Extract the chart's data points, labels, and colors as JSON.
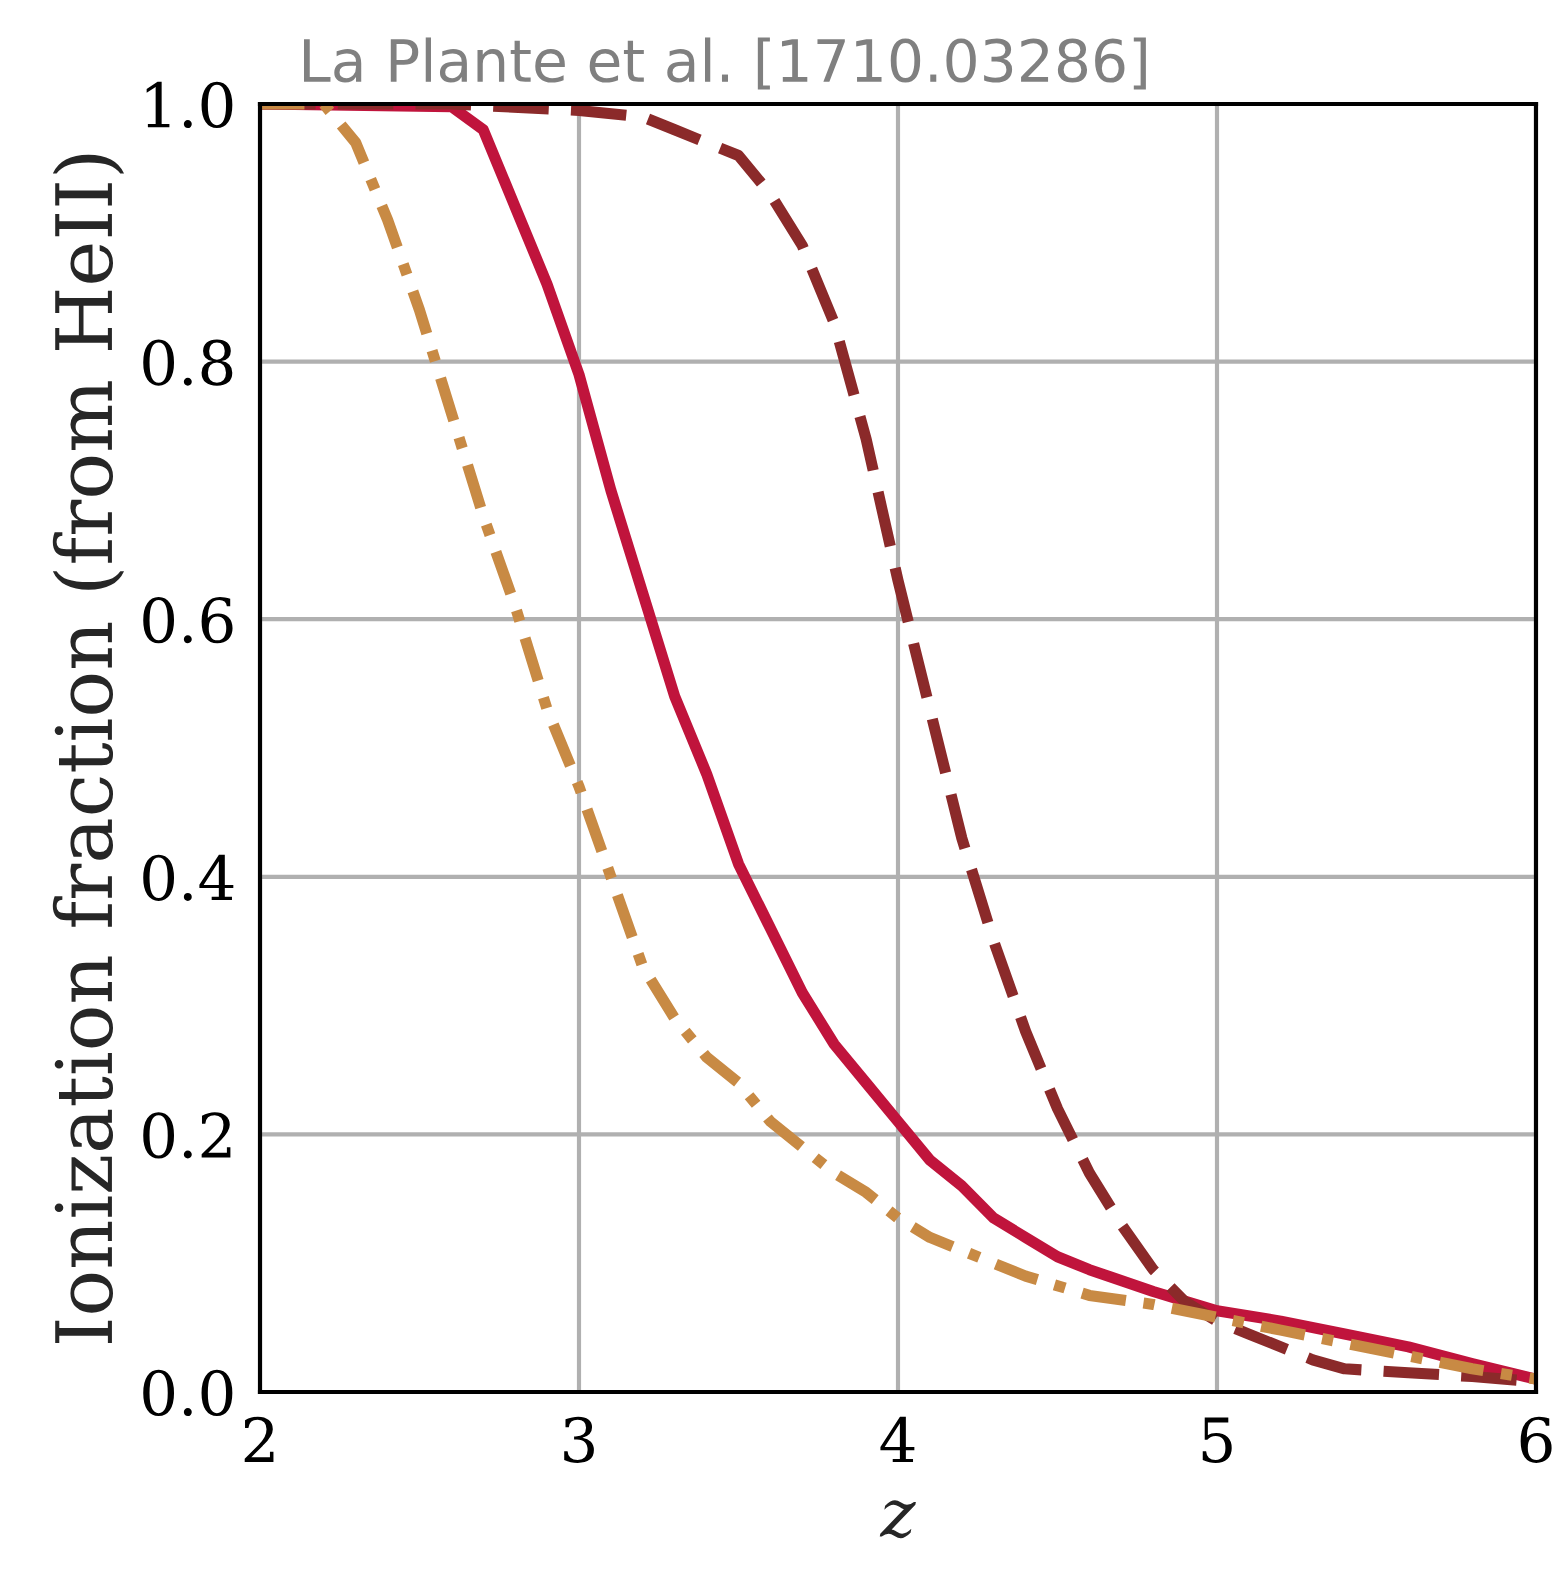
{
  "chart_data": {
    "type": "line",
    "title": "La Plante et al. [1710.03286]",
    "xlabel": "z",
    "ylabel": "Ionization fraction (from HeII)",
    "xlim": [
      2,
      6
    ],
    "ylim": [
      0,
      1
    ],
    "xticks": [
      2,
      3,
      4,
      5,
      6
    ],
    "yticks": [
      {
        "value": 0,
        "label": "0.0"
      },
      {
        "value": 0.2,
        "label": "0.2"
      },
      {
        "value": 0.4,
        "label": "0.4"
      },
      {
        "value": 0.6,
        "label": "0.6"
      },
      {
        "value": 0.8,
        "label": "0.8"
      },
      {
        "value": 1,
        "label": "1.0"
      }
    ],
    "grid": true,
    "series": [
      {
        "color": "#c0143c",
        "line_style": "solid",
        "x": [
          2.0,
          2.6,
          2.7,
          2.8,
          2.9,
          3.0,
          3.1,
          3.2,
          3.3,
          3.4,
          3.5,
          3.6,
          3.7,
          3.8,
          3.9,
          4.0,
          4.1,
          4.2,
          4.3,
          4.4,
          4.5,
          4.6,
          4.8,
          5.0,
          5.2,
          5.4,
          5.6,
          5.8,
          6.0
        ],
        "values": [
          1.0,
          0.998,
          0.98,
          0.92,
          0.86,
          0.79,
          0.7,
          0.62,
          0.54,
          0.48,
          0.41,
          0.36,
          0.31,
          0.27,
          0.24,
          0.21,
          0.18,
          0.16,
          0.135,
          0.12,
          0.105,
          0.095,
          0.078,
          0.063,
          0.055,
          0.045,
          0.035,
          0.022,
          0.01
        ]
      },
      {
        "color": "#8b2a2a",
        "line_style": "dashed",
        "x": [
          2.0,
          2.6,
          3.0,
          3.2,
          3.3,
          3.5,
          3.6,
          3.7,
          3.8,
          3.9,
          4.0,
          4.1,
          4.2,
          4.3,
          4.4,
          4.5,
          4.6,
          4.7,
          4.8,
          4.9,
          5.0,
          5.1,
          5.2,
          5.3,
          5.4,
          5.6,
          5.8,
          6.0
        ],
        "values": [
          1.0,
          1.0,
          0.995,
          0.99,
          0.98,
          0.96,
          0.93,
          0.89,
          0.83,
          0.74,
          0.63,
          0.53,
          0.43,
          0.35,
          0.28,
          0.22,
          0.17,
          0.13,
          0.095,
          0.07,
          0.055,
          0.045,
          0.035,
          0.025,
          0.018,
          0.015,
          0.012,
          0.008
        ]
      },
      {
        "color": "#c88a44",
        "line_style": "dashdot",
        "x": [
          2.0,
          2.2,
          2.3,
          2.4,
          2.5,
          2.6,
          2.7,
          2.8,
          2.9,
          3.0,
          3.1,
          3.2,
          3.3,
          3.4,
          3.5,
          3.6,
          3.7,
          3.8,
          3.9,
          4.0,
          4.1,
          4.2,
          4.4,
          4.6,
          4.8,
          5.0,
          5.2,
          5.4,
          5.6,
          5.8,
          6.0
        ],
        "values": [
          1.0,
          1.0,
          0.97,
          0.91,
          0.84,
          0.76,
          0.68,
          0.61,
          0.53,
          0.47,
          0.4,
          0.33,
          0.29,
          0.26,
          0.24,
          0.21,
          0.19,
          0.17,
          0.155,
          0.135,
          0.12,
          0.11,
          0.09,
          0.075,
          0.068,
          0.058,
          0.048,
          0.038,
          0.028,
          0.018,
          0.01
        ]
      }
    ]
  }
}
